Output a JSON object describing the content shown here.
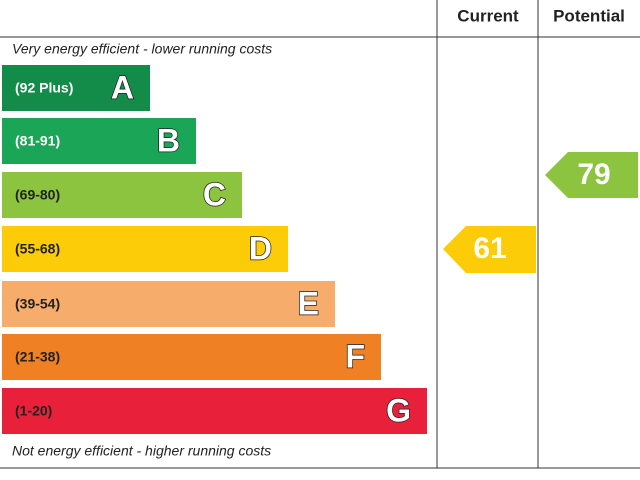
{
  "header": {
    "current": "Current",
    "potential": "Potential"
  },
  "top_note": "Very energy efficient - lower running costs",
  "bottom_note": "Not energy efficient - higher running costs",
  "bands": [
    {
      "range": "(92 Plus)",
      "letter": "A"
    },
    {
      "range": "(81-91)",
      "letter": "B"
    },
    {
      "range": "(69-80)",
      "letter": "C"
    },
    {
      "range": "(55-68)",
      "letter": "D"
    },
    {
      "range": "(39-54)",
      "letter": "E"
    },
    {
      "range": "(21-38)",
      "letter": "F"
    },
    {
      "range": "(1-20)",
      "letter": "G"
    }
  ],
  "current_rating": "61",
  "potential_rating": "79"
}
